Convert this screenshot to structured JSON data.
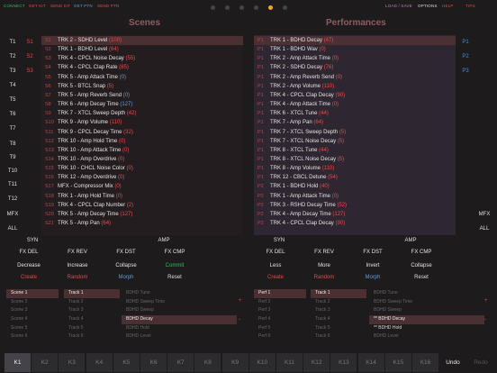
{
  "topbar": {
    "links_left": [
      {
        "label": "CONNECT",
        "color": "#2fbf5a"
      },
      {
        "label": "GET KIT",
        "color": "#e14a4a"
      },
      {
        "label": "SEND KIT",
        "color": "#e14a4a"
      },
      {
        "label": "GET PTN",
        "color": "#5f9bd8"
      },
      {
        "label": "SEND PTN",
        "color": "#e14a4a"
      }
    ],
    "links_right": [
      {
        "label": "LOAD / SAVE",
        "color": "#c47ab7"
      },
      {
        "label": "OPTIONS",
        "color": "#dddddd"
      },
      {
        "label": "HELP",
        "color": "#e14a4a"
      },
      {
        "label": "TIPS",
        "color": "#e14a4a"
      }
    ],
    "page_count": 6,
    "active_page": 4
  },
  "scenes": {
    "title": "Scenes",
    "rows": [
      {
        "id": "S1",
        "text": "TRK 2 - SDHD Level",
        "val": "(100)",
        "vcol": "red",
        "hl": true
      },
      {
        "id": "S2",
        "text": "TRK 1 - BDHD Level",
        "val": "(64)",
        "vcol": "red"
      },
      {
        "id": "S3",
        "text": "TRK 4 - CPCL Noise Decay",
        "val": "(55)",
        "vcol": "red"
      },
      {
        "id": "S4",
        "text": "TRK 4 - CPCL Clap Rate",
        "val": "(85)",
        "vcol": "red"
      },
      {
        "id": "S5",
        "text": "TRK 5 - Amp Attack Time",
        "val": "(0)",
        "vcol": "blue"
      },
      {
        "id": "S6",
        "text": "TRK 5 - BTCL Snap",
        "val": "(5)",
        "vcol": "red"
      },
      {
        "id": "S7",
        "text": "TRK 5 - Amp Reverb Send",
        "val": "(0)",
        "vcol": "blue"
      },
      {
        "id": "S8",
        "text": "TRK 6 - Amp Decay Time",
        "val": "(127)",
        "vcol": "blue"
      },
      {
        "id": "S9",
        "text": "TRK 7 - XTCL Sweep Depth",
        "val": "(42)",
        "vcol": "red"
      },
      {
        "id": "S10",
        "text": "TRK 9 - Amp Volume",
        "val": "(110)",
        "vcol": "red"
      },
      {
        "id": "S11",
        "text": "TRK 9 - CPCL Decay Time",
        "val": "(32)",
        "vcol": "red"
      },
      {
        "id": "S12",
        "text": "TRK 10 - Amp Hold Time",
        "val": "(0)",
        "vcol": "red"
      },
      {
        "id": "S13",
        "text": "TRK 10 - Amp Attack Time",
        "val": "(0)",
        "vcol": "red"
      },
      {
        "id": "S14",
        "text": "TRK 10 - Amp Overdrive",
        "val": "(0)",
        "vcol": "red"
      },
      {
        "id": "S15",
        "text": "TRK 10 - CHCL Noise Color",
        "val": "(0)",
        "vcol": "red"
      },
      {
        "id": "S16",
        "text": "TRK 12 - Amp Overdrive",
        "val": "(0)",
        "vcol": "red"
      },
      {
        "id": "S17",
        "text": "MFX - Compressor Mix",
        "val": "(0)",
        "vcol": "red"
      },
      {
        "id": "S18",
        "text": "TRK 1 - Amp Hold Time",
        "val": "(0)",
        "vcol": "red"
      },
      {
        "id": "S19",
        "text": "TRK 4 - CPCL Clap Number",
        "val": "(2)",
        "vcol": "red"
      },
      {
        "id": "S20",
        "text": "TRK 5 - Amp Decay Time",
        "val": "(127)",
        "vcol": "red"
      },
      {
        "id": "S21",
        "text": "TRK 5 - Amp Pan",
        "val": "(64)",
        "vcol": "red"
      }
    ]
  },
  "performances": {
    "title": "Performances",
    "rows": [
      {
        "id": "P1",
        "text": "TRK 1 - BDHD Decay",
        "val": "(47)",
        "vcol": "red",
        "hl": true
      },
      {
        "id": "P1",
        "text": "TRK 1 - BDHD Wav",
        "val": "(0)",
        "vcol": "red"
      },
      {
        "id": "P1",
        "text": "TRK 2 - Amp Attack Time",
        "val": "(0)",
        "vcol": "red"
      },
      {
        "id": "P1",
        "text": "TRK 2 - SDHD Decay",
        "val": "(76)",
        "vcol": "red"
      },
      {
        "id": "P1",
        "text": "TRK 2 - Amp Reverb Send",
        "val": "(0)",
        "vcol": "red"
      },
      {
        "id": "P1",
        "text": "TRK 2 - Amp Volume",
        "val": "(110)",
        "vcol": "red"
      },
      {
        "id": "P1",
        "text": "TRK 4 - CPCL Clap Decay",
        "val": "(90)",
        "vcol": "red"
      },
      {
        "id": "P1",
        "text": "TRK 4 - Amp Attack Time",
        "val": "(0)",
        "vcol": "red"
      },
      {
        "id": "P1",
        "text": "TRK 6 - XTCL Tune",
        "val": "(44)",
        "vcol": "red"
      },
      {
        "id": "P1",
        "text": "TRK 7 - Amp Pan",
        "val": "(64)",
        "vcol": "red"
      },
      {
        "id": "P1",
        "text": "TRK 7 - XTCL Sweep Depth",
        "val": "(5)",
        "vcol": "red"
      },
      {
        "id": "P1",
        "text": "TRK 7 - XTCL Noise Decay",
        "val": "(5)",
        "vcol": "red"
      },
      {
        "id": "P1",
        "text": "TRK 8 - XTCL Tune",
        "val": "(44)",
        "vcol": "red"
      },
      {
        "id": "P1",
        "text": "TRK 8 - XTCL Noise Decay",
        "val": "(5)",
        "vcol": "red"
      },
      {
        "id": "P1",
        "text": "TRK 8 - Amp Volume",
        "val": "(110)",
        "vcol": "red"
      },
      {
        "id": "P1",
        "text": "TRK 12 - CBCL Detune",
        "val": "(54)",
        "vcol": "red"
      },
      {
        "id": "P2",
        "text": "TRK 1 - BDHD Hold",
        "val": "(40)",
        "vcol": "red"
      },
      {
        "id": "P2",
        "text": "TRK 1 - Amp Attack Time",
        "val": "(0)",
        "vcol": "red"
      },
      {
        "id": "P2",
        "text": "TRK 3 - RSHD Decay Time",
        "val": "(52)",
        "vcol": "red"
      },
      {
        "id": "P2",
        "text": "TRK 4 - Amp Decay Time",
        "val": "(127)",
        "vcol": "red"
      },
      {
        "id": "P2",
        "text": "TRK 4 - CPCL Clap Decay",
        "val": "(90)",
        "vcol": "red"
      }
    ]
  },
  "left_side": [
    "T1",
    "T2",
    "T3",
    "T4",
    "T5",
    "T6",
    "T7",
    "T8",
    "T9",
    "T10",
    "T11",
    "T12",
    "MFX",
    "ALL"
  ],
  "mid_labels": [
    "S1",
    "S2",
    "S3"
  ],
  "right_labels": [
    "P1",
    "P2",
    "P3"
  ],
  "right_side": [
    "MFX",
    "ALL"
  ],
  "left_controls": {
    "rowA": [
      "SYN",
      "AMP"
    ],
    "rowB": [
      "FX DEL",
      "FX REV",
      "FX DST",
      "FX CMP"
    ],
    "rowC": [
      "Decrease",
      "Increase",
      "Collapse",
      "Commit"
    ],
    "rowD": [
      "Create",
      "Random",
      "Morph",
      "Reset"
    ]
  },
  "right_controls": {
    "rowA": [
      "SYN",
      "AMP"
    ],
    "rowB": [
      "FX DEL",
      "FX REV",
      "FX DST",
      "FX CMP"
    ],
    "rowC": [
      "Less",
      "More",
      "Invert",
      "Collapse"
    ],
    "rowD": [
      "Create",
      "Random",
      "Morph",
      "Reset"
    ]
  },
  "scene_list": [
    "Scene 1",
    "Scene 2",
    "Scene 3",
    "Scene 4",
    "Scene 5",
    "Scene 6"
  ],
  "track_list": [
    "Track 1",
    "Track 2",
    "Track 3",
    "Track 4",
    "Track 5",
    "Track 6"
  ],
  "param_list": [
    "BDHD Tune",
    "BDHD Sweep Time",
    "BDHD Sweep",
    "BDHD Decay",
    "BDHD Hold",
    "BDHD Level"
  ],
  "perf_list": [
    "Perf 1",
    "Perf 2",
    "Perf 3",
    "Perf 4",
    "Perf 5",
    "Perf 6"
  ],
  "track_list2": [
    "Track 1",
    "Track 2",
    "Track 3",
    "Track 4",
    "Track 5",
    "Track 6"
  ],
  "param_list2": [
    "BDHD Tune",
    "BDHD Sweep Time",
    "BDHD Sweep",
    "** BDHD Decay",
    "** BDHD Hold",
    "BDHD Level"
  ],
  "kits": [
    "K1",
    "K2",
    "K3",
    "K4",
    "K5",
    "K6",
    "K7",
    "K8",
    "K9",
    "K10",
    "K11",
    "K12",
    "K13",
    "K14",
    "K15",
    "K16"
  ],
  "undo_label": "Undo",
  "redo_label": "Redo"
}
